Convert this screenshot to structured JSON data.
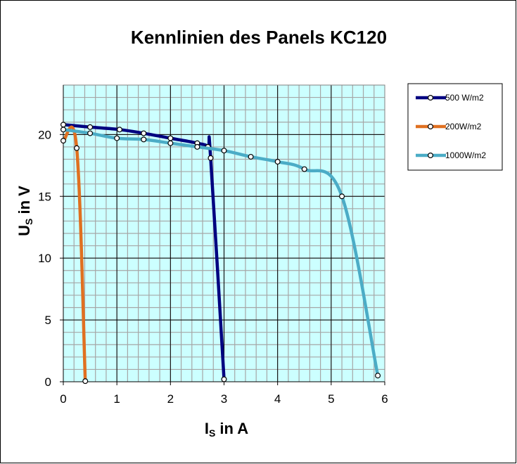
{
  "chart_data": {
    "type": "line",
    "title": "Kennlinien des Panels KC120",
    "xlabel": {
      "main": "I",
      "sub": "S",
      "rest": " in A"
    },
    "ylabel": {
      "main": "U",
      "sub": "S",
      "rest": " in V"
    },
    "xlim": [
      0,
      6
    ],
    "ylim": [
      0,
      24
    ],
    "xticks": [
      0,
      1,
      2,
      3,
      4,
      5,
      6
    ],
    "yticks": [
      0,
      5,
      10,
      15,
      20
    ],
    "x_minor_step": 0.2,
    "y_minor_step": 1,
    "grid": true,
    "legend_position": "right",
    "plot_background": "#ccffff",
    "series": [
      {
        "name": " 500 W/m2",
        "color": "#000080",
        "x": [
          0,
          0.5,
          1.05,
          1.5,
          2.0,
          2.5,
          2.7,
          2.75,
          3.0
        ],
        "y": [
          20.8,
          20.6,
          20.4,
          20.1,
          19.7,
          19.3,
          19.0,
          18.1,
          0.2
        ]
      },
      {
        "name": "200W/m2",
        "color": "#e07020",
        "x": [
          0,
          0.25,
          0.41
        ],
        "y": [
          19.5,
          18.9,
          0.05
        ]
      },
      {
        "name": "1000W/m2",
        "color": "#4bacc6",
        "x": [
          0,
          0.5,
          1.0,
          1.5,
          2.0,
          2.5,
          3.0,
          3.5,
          4.0,
          4.5,
          5.2,
          5.87
        ],
        "y": [
          20.4,
          20.1,
          19.7,
          19.6,
          19.3,
          19.0,
          18.7,
          18.2,
          17.8,
          17.2,
          15.0,
          0.5
        ]
      }
    ]
  }
}
